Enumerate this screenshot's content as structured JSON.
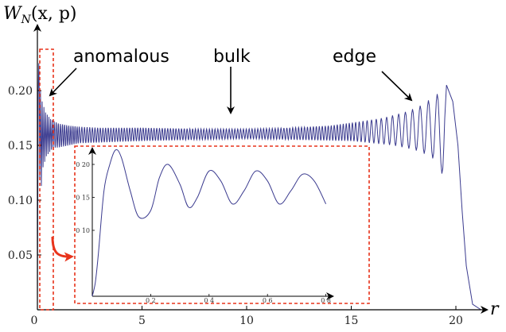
{
  "chart_data": {
    "type": "line",
    "title": "",
    "ylabel": "W_N(x, p)",
    "ylabel_main": "W",
    "ylabel_sub": "N",
    "ylabel_args": "(x, p)",
    "xlabel": "r",
    "xlim": [
      0,
      22
    ],
    "ylim": [
      0,
      0.24
    ],
    "grid": false,
    "x_ticks": [
      0,
      5,
      10,
      15,
      20
    ],
    "x_tick_labels": [
      "0",
      "5",
      "10",
      "15",
      "20"
    ],
    "y_ticks": [
      0.05,
      0.1,
      0.15,
      0.2
    ],
    "y_tick_labels": [
      "0.05",
      "0.10",
      "0.15",
      "0.20"
    ],
    "series": [
      {
        "color": "#3b3b8f",
        "x": [
          0.0,
          0.02,
          0.04,
          0.07,
          0.09,
          0.11,
          0.15,
          0.19,
          0.23,
          0.27,
          0.31,
          0.35,
          0.39,
          0.43,
          0.47,
          0.51,
          0.55,
          0.59,
          0.63,
          0.67,
          0.71,
          0.75,
          0.8,
          1.0,
          1.5,
          2.0,
          3.0,
          5.0,
          8.0,
          10.0,
          12.0,
          14.0,
          15.5,
          16.5,
          17.5,
          18.2,
          18.6,
          19.0,
          19.3,
          19.55,
          19.85,
          20.1,
          20.3,
          20.5,
          20.8,
          21.2
        ],
        "y": [
          0.0,
          0.1,
          0.2,
          0.225,
          0.2,
          0.12,
          0.2,
          0.113,
          0.19,
          0.13,
          0.185,
          0.135,
          0.18,
          0.14,
          0.178,
          0.142,
          0.176,
          0.144,
          0.174,
          0.146,
          0.173,
          0.147,
          0.172,
          0.17,
          0.168,
          0.167,
          0.166,
          0.166,
          0.165,
          0.165,
          0.166,
          0.168,
          0.172,
          0.175,
          0.18,
          0.185,
          0.19,
          0.195,
          0.2,
          0.205,
          0.19,
          0.15,
          0.09,
          0.04,
          0.005,
          0.0
        ],
        "envelope_bottom": [
          [
            1.0,
            0.148
          ],
          [
            2.0,
            0.152
          ],
          [
            5.0,
            0.154
          ],
          [
            10.0,
            0.156
          ],
          [
            15.0,
            0.154
          ],
          [
            17.0,
            0.15
          ],
          [
            18.0,
            0.146
          ],
          [
            18.8,
            0.14
          ],
          [
            19.2,
            0.132
          ],
          [
            19.4,
            0.12
          ]
        ]
      }
    ],
    "annotations": [
      {
        "text": "anomalous",
        "points_to": [
          0.2,
          0.19
        ]
      },
      {
        "text": "bulk",
        "points_to": [
          9.5,
          0.17
        ]
      },
      {
        "text": "edge",
        "points_to": [
          18.2,
          0.183
        ]
      }
    ],
    "highlight_box": {
      "x": [
        0.0,
        0.75
      ],
      "y": [
        0.0,
        0.23
      ],
      "color": "#e8341c"
    },
    "inset": {
      "xlim": [
        0,
        0.9
      ],
      "ylim": [
        0.0,
        0.235
      ],
      "x_ticks": [
        0.2,
        0.4,
        0.6,
        0.8
      ],
      "x_tick_labels": [
        "0 2",
        "0 4",
        "0 6",
        "0 8"
      ],
      "y_ticks": [
        0.1,
        0.15,
        0.2
      ],
      "y_tick_labels": [
        "0 10",
        "0 15",
        "0 20"
      ],
      "series_x": [
        0.0,
        0.01,
        0.02,
        0.04,
        0.06,
        0.08,
        0.1,
        0.13,
        0.16,
        0.2,
        0.23,
        0.26,
        0.3,
        0.33,
        0.36,
        0.4,
        0.44,
        0.48,
        0.52,
        0.56,
        0.6,
        0.64,
        0.68,
        0.72,
        0.76,
        0.8
      ],
      "series_y": [
        0.0,
        0.02,
        0.06,
        0.16,
        0.2,
        0.222,
        0.21,
        0.16,
        0.12,
        0.13,
        0.18,
        0.2,
        0.17,
        0.135,
        0.15,
        0.19,
        0.175,
        0.14,
        0.16,
        0.19,
        0.175,
        0.14,
        0.16,
        0.185,
        0.175,
        0.14
      ]
    }
  }
}
